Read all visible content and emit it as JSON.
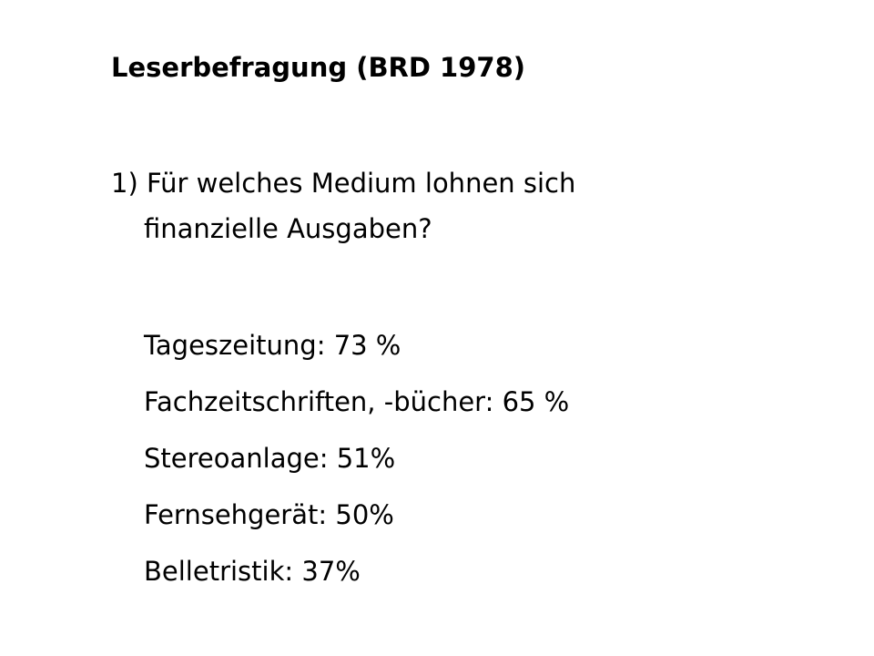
{
  "slide": {
    "title": "Leserbefragung (BRD 1978)",
    "question": {
      "line1": "1) Für welches Medium lohnen sich",
      "line2": "finanzielle Ausgaben?"
    },
    "items": [
      "Tageszeitung: 73 %",
      "Fachzeitschriften, -bücher: 65 %",
      "Stereoanlage: 51%",
      "Fernsehgerät: 50%",
      "Belletristik: 37%"
    ]
  }
}
